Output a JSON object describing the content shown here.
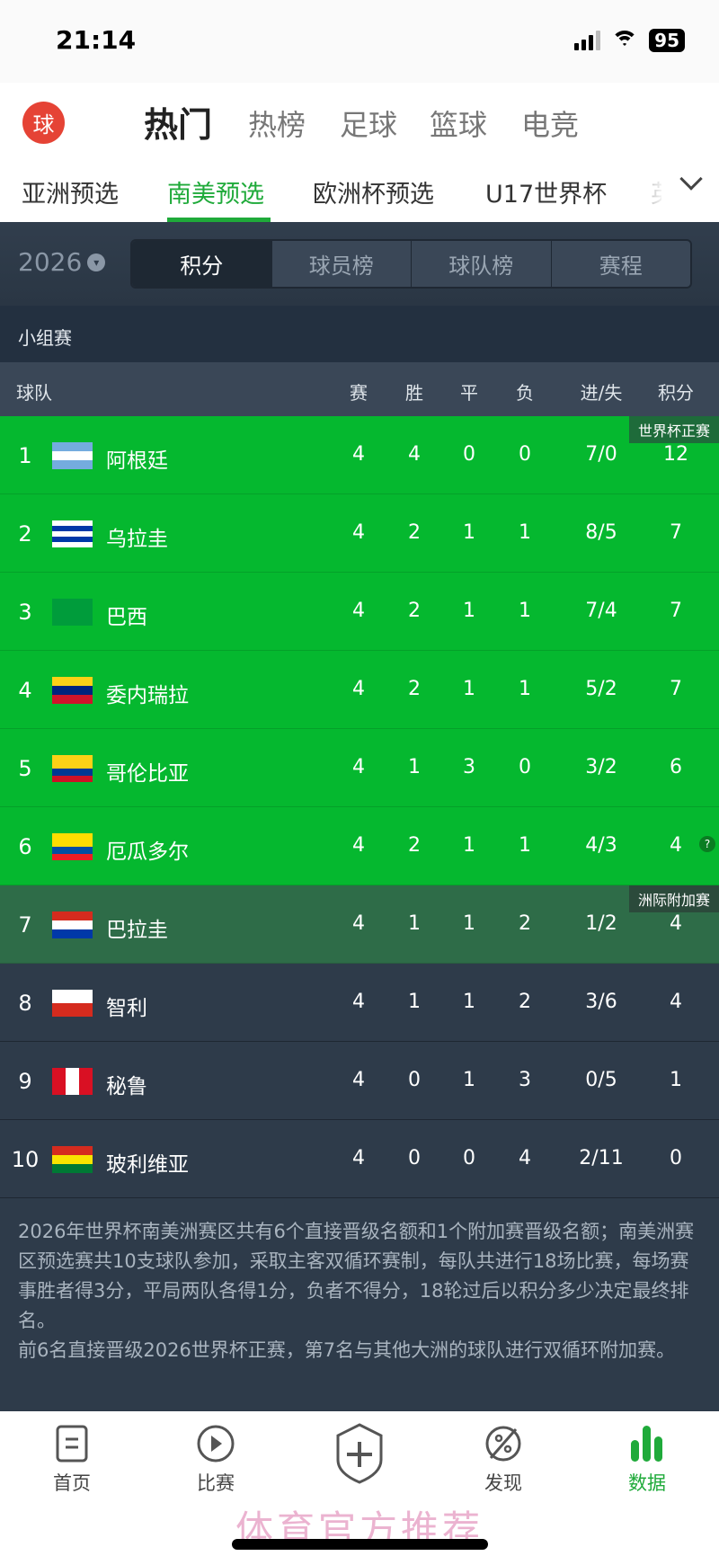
{
  "status_bar": {
    "time": "21:14",
    "battery": "95"
  },
  "top_nav": {
    "logo": "球",
    "items": [
      {
        "label": "热门",
        "active": true
      },
      {
        "label": "热榜"
      },
      {
        "label": "足球"
      },
      {
        "label": "篮球"
      },
      {
        "label": "电竞"
      }
    ]
  },
  "sub_nav": {
    "items": [
      {
        "label": "亚洲预选"
      },
      {
        "label": "南美预选",
        "active": true
      },
      {
        "label": "欧洲杯预选"
      },
      {
        "label": "U17世界杯"
      },
      {
        "label": "英"
      }
    ],
    "expand_icon": "chevron-down-icon"
  },
  "season": {
    "value": "2026"
  },
  "segments": [
    {
      "label": "积分",
      "active": true
    },
    {
      "label": "球员榜"
    },
    {
      "label": "球队榜"
    },
    {
      "label": "赛程"
    }
  ],
  "group": {
    "title": "小组赛"
  },
  "columns": {
    "team": "球队",
    "played": "赛",
    "win": "胜",
    "draw": "平",
    "loss": "负",
    "goals": "进/失",
    "points": "积分"
  },
  "zone_badges": {
    "qualify": "世界杯正赛",
    "playoff": "洲际附加赛"
  },
  "colors": {
    "qualify": "#05b82f",
    "playoff": "#2e6c48",
    "accent": "#1faa3a"
  },
  "rows": [
    {
      "rank": "1",
      "team": "阿根廷",
      "p": "4",
      "w": "4",
      "d": "0",
      "l": "0",
      "g": "7/0",
      "pts": "12",
      "zone": "q",
      "flag": [
        "#74acdf",
        "#ffffff",
        "#74acdf"
      ]
    },
    {
      "rank": "2",
      "team": "乌拉圭",
      "p": "4",
      "w": "2",
      "d": "1",
      "l": "1",
      "g": "8/5",
      "pts": "7",
      "zone": "q",
      "flag": [
        "#ffffff",
        "#0038a8",
        "#ffffff",
        "#0038a8",
        "#ffffff"
      ]
    },
    {
      "rank": "3",
      "team": "巴西",
      "p": "4",
      "w": "2",
      "d": "1",
      "l": "1",
      "g": "7/4",
      "pts": "7",
      "zone": "q",
      "flag": [
        "#009c3b"
      ]
    },
    {
      "rank": "4",
      "team": "委内瑞拉",
      "p": "4",
      "w": "2",
      "d": "1",
      "l": "1",
      "g": "5/2",
      "pts": "7",
      "zone": "q",
      "flag": [
        "#fcd116",
        "#00247d",
        "#cf142b"
      ]
    },
    {
      "rank": "5",
      "team": "哥伦比亚",
      "p": "4",
      "w": "1",
      "d": "3",
      "l": "0",
      "g": "3/2",
      "pts": "6",
      "zone": "q",
      "flag": [
        "#fcd116",
        "#fcd116",
        "#003893",
        "#ce1126"
      ]
    },
    {
      "rank": "6",
      "team": "厄瓜多尔",
      "p": "4",
      "w": "2",
      "d": "1",
      "l": "1",
      "g": "4/3",
      "pts": "4",
      "zone": "q",
      "flag": [
        "#ffdd00",
        "#ffdd00",
        "#034ea2",
        "#ed1c24"
      ],
      "note": "?"
    },
    {
      "rank": "7",
      "team": "巴拉圭",
      "p": "4",
      "w": "1",
      "d": "1",
      "l": "2",
      "g": "1/2",
      "pts": "4",
      "zone": "p",
      "flag": [
        "#d52b1e",
        "#ffffff",
        "#0038a8"
      ]
    },
    {
      "rank": "8",
      "team": "智利",
      "p": "4",
      "w": "1",
      "d": "1",
      "l": "2",
      "g": "3/6",
      "pts": "4",
      "zone": "n",
      "flag": [
        "#ffffff",
        "#d52b1e"
      ]
    },
    {
      "rank": "9",
      "team": "秘鲁",
      "p": "4",
      "w": "0",
      "d": "1",
      "l": "3",
      "g": "0/5",
      "pts": "1",
      "zone": "n",
      "flag": [
        "#d91023",
        "#ffffff",
        "#d91023"
      ],
      "vertical": true
    },
    {
      "rank": "10",
      "team": "玻利维亚",
      "p": "4",
      "w": "0",
      "d": "0",
      "l": "4",
      "g": "2/11",
      "pts": "0",
      "zone": "n",
      "flag": [
        "#d52b1e",
        "#f9e300",
        "#007934"
      ]
    }
  ],
  "notes": [
    "2026年世界杯南美洲赛区共有6个直接晋级名额和1个附加赛晋级名额；南美洲赛区预选赛共10支球队参加，采取主客双循环赛制，每队共进行18场比赛，每场赛事胜者得3分，平局两队各得1分，负者不得分，18轮过后以积分多少决定最终排名。",
    "前6名直接晋级2026世界杯正赛，第7名与其他大洲的球队进行双循环附加赛。"
  ],
  "tab_bar": [
    {
      "label": "首页",
      "icon": "document-icon"
    },
    {
      "label": "比赛",
      "icon": "play-icon"
    },
    {
      "label": "",
      "icon": "shield-plus-icon"
    },
    {
      "label": "发现",
      "icon": "discover-icon"
    },
    {
      "label": "数据",
      "icon": "bar-chart-icon",
      "active": true
    }
  ],
  "watermark": "体育官方推荐"
}
